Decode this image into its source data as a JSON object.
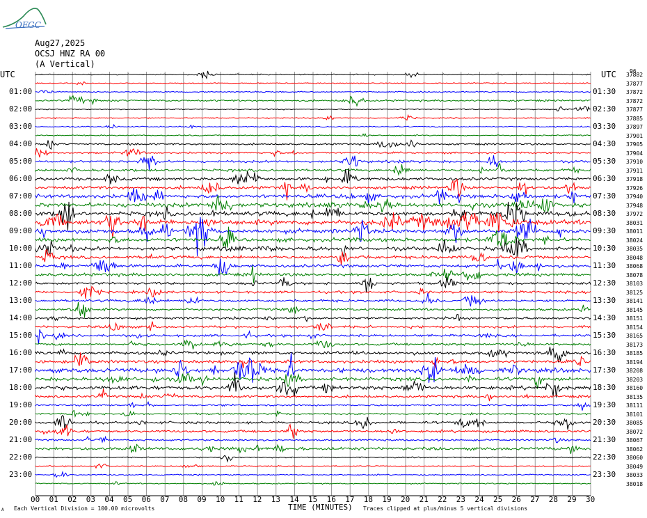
{
  "logo": {
    "text": "OFGC"
  },
  "header": {
    "date": "Aug27,2025",
    "station": "OCSJ HNZ RA 00",
    "component": "(A Vertical)"
  },
  "left_axis_label": "UTC",
  "right_axis_label": "UTC",
  "corner_label": "96",
  "colors": {
    "black": "#000000",
    "red": "#ff0000",
    "blue": "#0000ff",
    "green": "#007f00",
    "grid": "#808080"
  },
  "chart_data": {
    "type": "line",
    "title": "OCSJ HNZ RA 00",
    "xlabel": "TIME (MINUTES)",
    "ylabel": "UTC",
    "xlim": [
      0,
      30
    ],
    "x_ticks": [
      "00",
      "01",
      "02",
      "03",
      "04",
      "05",
      "06",
      "07",
      "08",
      "09",
      "10",
      "11",
      "12",
      "13",
      "14",
      "15",
      "16",
      "17",
      "18",
      "19",
      "20",
      "21",
      "22",
      "23",
      "24",
      "25",
      "26",
      "27",
      "28",
      "29",
      "30"
    ],
    "left_hours": [
      "",
      "01:00",
      "02:00",
      "03:00",
      "04:00",
      "05:00",
      "06:00",
      "07:00",
      "08:00",
      "09:00",
      "10:00",
      "11:00",
      "12:00",
      "13:00",
      "14:00",
      "15:00",
      "16:00",
      "17:00",
      "18:00",
      "19:00",
      "20:00",
      "21:00",
      "22:00",
      "23:00"
    ],
    "right_hours": [
      "",
      "01:30",
      "02:30",
      "03:30",
      "04:30",
      "05:30",
      "06:30",
      "07:30",
      "08:30",
      "09:30",
      "10:30",
      "11:30",
      "12:30",
      "13:30",
      "14:30",
      "15:30",
      "16:30",
      "17:30",
      "18:30",
      "19:30",
      "20:30",
      "21:30",
      "22:30",
      "23:30"
    ],
    "trace_colors": [
      "black",
      "red",
      "blue",
      "green"
    ],
    "trace_rms": [
      "37882",
      "37877",
      "37872",
      "37872",
      "37877",
      "37885",
      "37897",
      "37901",
      "37905",
      "37904",
      "37910",
      "37911",
      "37918",
      "37926",
      "37940",
      "37948",
      "37972",
      "38031",
      "38011",
      "38024",
      "38035",
      "38048",
      "38068",
      "38078",
      "38103",
      "38125",
      "38141",
      "38145",
      "38151",
      "38154",
      "38165",
      "38173",
      "38185",
      "38194",
      "38208",
      "38203",
      "38160",
      "38135",
      "38111",
      "38101",
      "38085",
      "38072",
      "38067",
      "38062",
      "38060",
      "38049",
      "38033",
      "38018"
    ],
    "activity": [
      1,
      1,
      1,
      2,
      1,
      1,
      1,
      1,
      2,
      2,
      3,
      3,
      4,
      4,
      5,
      6,
      6,
      7,
      6,
      5,
      5,
      4,
      4,
      4,
      3,
      3,
      3,
      3,
      3,
      3,
      3,
      3,
      4,
      4,
      6,
      5,
      5,
      3,
      2,
      2,
      3,
      3,
      2,
      4,
      1,
      1,
      1,
      1
    ]
  },
  "footer": {
    "scale_note": "Each Vertical Division =  100.00 microvolts",
    "clip_note": "Traces clipped at plus/minus 5 vertical divisions",
    "corner_mark": "A"
  }
}
